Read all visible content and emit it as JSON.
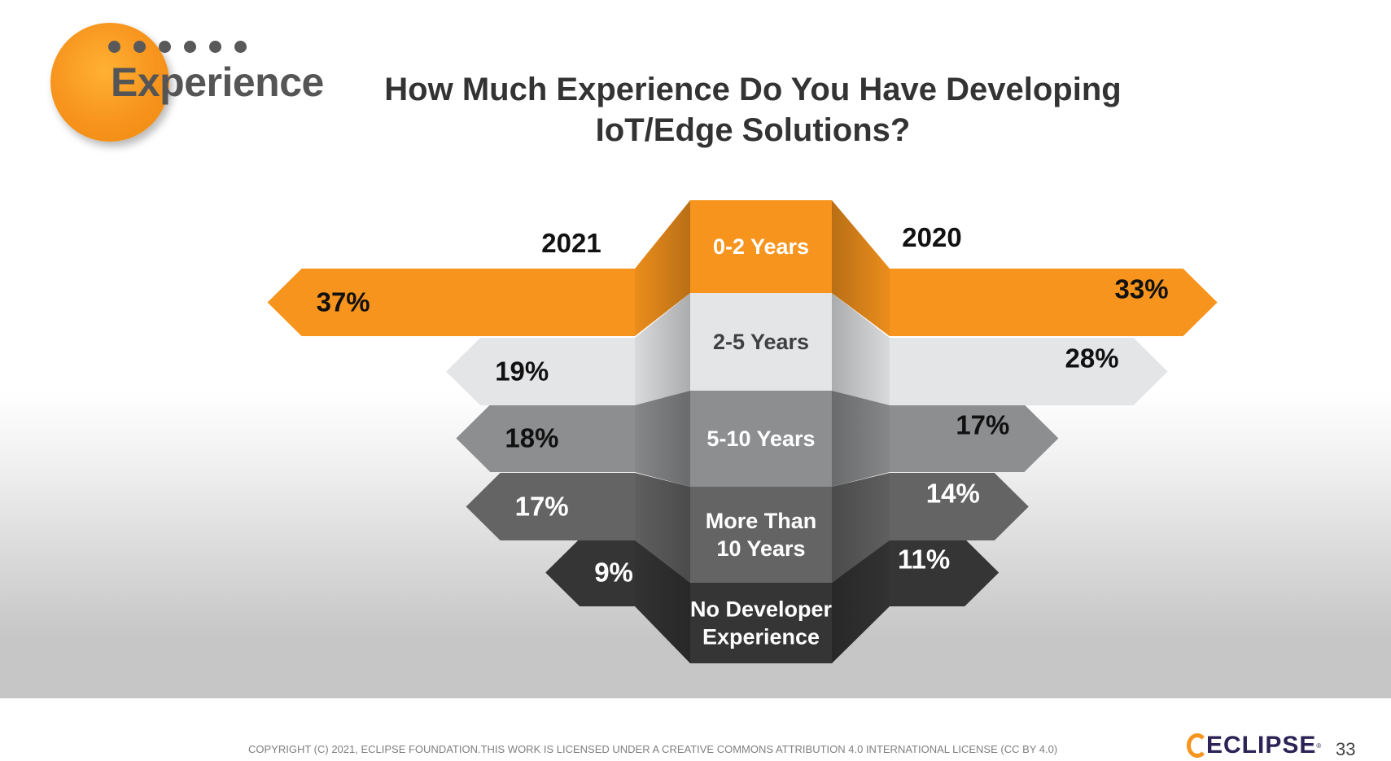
{
  "header": {
    "section_title": "Experience",
    "title_line1": "How Much Experience Do You Have Developing",
    "title_line2": "IoT/Edge Solutions?"
  },
  "chart_data": {
    "type": "bar",
    "title": "How Much Experience Do You Have Developing IoT/Edge Solutions?",
    "categories": [
      "0-2 Years",
      "2-5 Years",
      "5-10 Years",
      "More Than 10 Years",
      "No Developer Experience"
    ],
    "series": [
      {
        "name": "2021",
        "values": [
          37,
          19,
          18,
          17,
          9
        ]
      },
      {
        "name": "2020",
        "values": [
          33,
          28,
          17,
          14,
          11
        ]
      }
    ],
    "value_suffix": "%",
    "colors": [
      "#f7941d",
      "#e4e5e7",
      "#8d8e90",
      "#646464",
      "#353535"
    ]
  },
  "footer": {
    "copyright": "COPYRIGHT (C) 2021, ECLIPSE FOUNDATION.THIS WORK IS LICENSED UNDER A CREATIVE COMMONS ATTRIBUTION 4.0 INTERNATIONAL LICENSE (CC BY 4.0)",
    "logo_text": "ECLIPSE",
    "page_number": "33"
  }
}
